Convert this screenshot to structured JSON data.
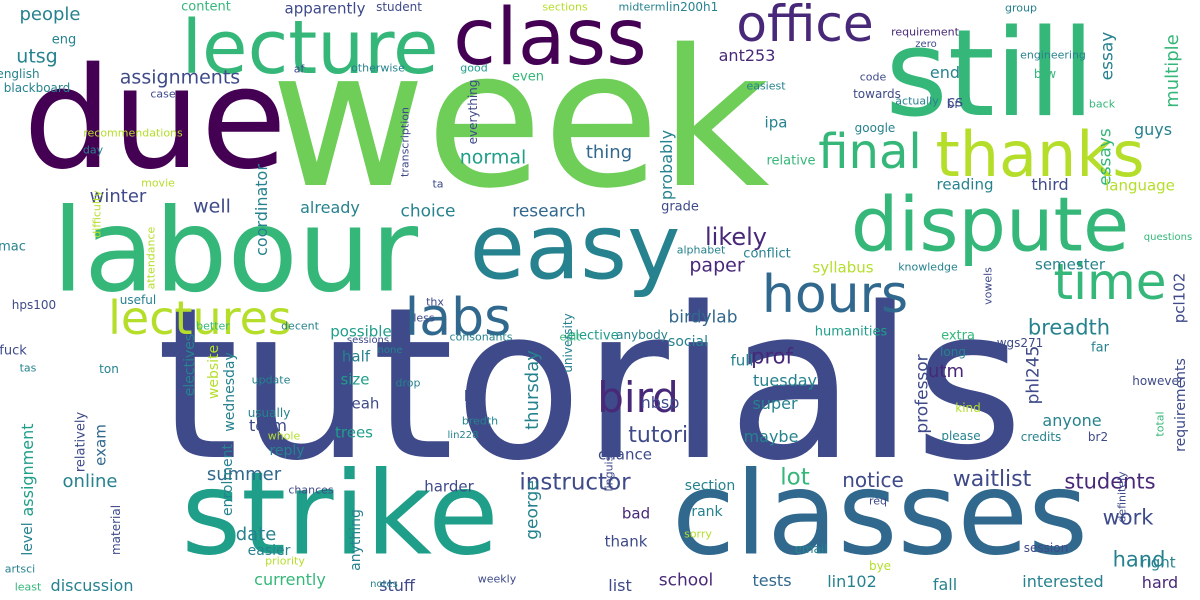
{
  "palette": {
    "dp": "#440154",
    "pu": "#482878",
    "in": "#3e4a89",
    "bl": "#31688e",
    "te": "#26828e",
    "tg": "#1f9e89",
    "gr": "#35b779",
    "lg": "#6ece58",
    "yg": "#b5de2b",
    "ye": "#fde725"
  },
  "words": [
    {
      "text": "week",
      "color": "lg",
      "v": false
    },
    {
      "text": "tutorials",
      "color": "in",
      "v": false
    },
    {
      "text": "still",
      "color": "gr",
      "v": false
    },
    {
      "text": "due",
      "color": "dp",
      "v": false
    },
    {
      "text": "labour",
      "color": "gr",
      "v": false
    },
    {
      "text": "strike",
      "color": "tg",
      "v": false
    },
    {
      "text": "classes",
      "color": "bl",
      "v": false
    },
    {
      "text": "class",
      "color": "dp",
      "v": false
    },
    {
      "text": "lecture",
      "color": "gr",
      "v": false
    },
    {
      "text": "easy",
      "color": "te",
      "v": false
    },
    {
      "text": "dispute",
      "color": "gr",
      "v": false
    },
    {
      "text": "thanks",
      "color": "yg",
      "v": false
    },
    {
      "text": "office",
      "color": "pu",
      "v": false
    },
    {
      "text": "hours",
      "color": "bl",
      "v": false
    },
    {
      "text": "final",
      "color": "gr",
      "v": false
    },
    {
      "text": "time",
      "color": "gr",
      "v": false
    },
    {
      "text": "lectures",
      "color": "yg",
      "v": false
    },
    {
      "text": "labs",
      "color": "bl",
      "v": false
    },
    {
      "text": "bird",
      "color": "pu",
      "v": false
    },
    {
      "text": "tutorial",
      "color": "in",
      "v": false
    },
    {
      "text": "instructor",
      "color": "in",
      "v": false
    },
    {
      "text": "waitlist",
      "color": "in",
      "v": false
    },
    {
      "text": "students",
      "color": "pu",
      "v": false
    },
    {
      "text": "notice",
      "color": "in",
      "v": false
    },
    {
      "text": "lot",
      "color": "gr",
      "v": false
    },
    {
      "text": "likely",
      "color": "pu",
      "v": false
    },
    {
      "text": "paper",
      "color": "pu",
      "v": false
    },
    {
      "text": "birdylab",
      "color": "bl",
      "v": false
    },
    {
      "text": "breadth",
      "color": "te",
      "v": false
    },
    {
      "text": "prof",
      "color": "pu",
      "v": false
    },
    {
      "text": "utm",
      "color": "pu",
      "v": false
    },
    {
      "text": "work",
      "color": "in",
      "v": false
    },
    {
      "text": "hand",
      "color": "te",
      "v": false
    },
    {
      "text": "assignments",
      "color": "in",
      "v": false
    },
    {
      "text": "people",
      "color": "te",
      "v": false
    },
    {
      "text": "utsg",
      "color": "te",
      "v": false
    },
    {
      "text": "winter",
      "color": "in",
      "v": false
    },
    {
      "text": "well",
      "color": "in",
      "v": false
    },
    {
      "text": "normal",
      "color": "tg",
      "v": false
    },
    {
      "text": "thing",
      "color": "bl",
      "v": false
    },
    {
      "text": "ant253",
      "color": "pu",
      "v": false
    },
    {
      "text": "end",
      "color": "te",
      "v": false
    },
    {
      "text": "essay",
      "color": "te",
      "v": true
    },
    {
      "text": "essays",
      "color": "gr",
      "v": true
    },
    {
      "text": "multiple",
      "color": "gr",
      "v": true
    },
    {
      "text": "guys",
      "color": "te",
      "v": false
    },
    {
      "text": "cs",
      "color": "in",
      "v": false
    },
    {
      "text": "ipa",
      "color": "te",
      "v": false
    },
    {
      "text": "reading",
      "color": "te",
      "v": false
    },
    {
      "text": "third",
      "color": "in",
      "v": false
    },
    {
      "text": "language",
      "color": "yg",
      "v": false
    },
    {
      "text": "online",
      "color": "te",
      "v": false
    },
    {
      "text": "summer",
      "color": "bl",
      "v": false
    },
    {
      "text": "date",
      "color": "te",
      "v": false
    },
    {
      "text": "discussion",
      "color": "te",
      "v": false
    },
    {
      "text": "stuff",
      "color": "in",
      "v": false
    },
    {
      "text": "school",
      "color": "pu",
      "v": false
    },
    {
      "text": "list",
      "color": "in",
      "v": false
    },
    {
      "text": "tests",
      "color": "bl",
      "v": false
    },
    {
      "text": "lin102",
      "color": "te",
      "v": false
    },
    {
      "text": "fall",
      "color": "te",
      "v": false
    },
    {
      "text": "interested",
      "color": "te",
      "v": false
    },
    {
      "text": "hard",
      "color": "pu",
      "v": false
    },
    {
      "text": "research",
      "color": "bl",
      "v": false
    },
    {
      "text": "choice",
      "color": "te",
      "v": false
    },
    {
      "text": "already",
      "color": "te",
      "v": false
    },
    {
      "text": "syllabus",
      "color": "yg",
      "v": false
    },
    {
      "text": "semester",
      "color": "te",
      "v": false
    },
    {
      "text": "tuesday",
      "color": "te",
      "v": false
    },
    {
      "text": "super",
      "color": "te",
      "v": false
    },
    {
      "text": "anyone",
      "color": "te",
      "v": false
    },
    {
      "text": "maybe",
      "color": "te",
      "v": false
    },
    {
      "text": "thursday",
      "color": "te",
      "v": true
    },
    {
      "text": "george",
      "color": "te",
      "v": true
    },
    {
      "text": "probably",
      "color": "te",
      "v": true
    },
    {
      "text": "coordinator",
      "color": "te",
      "v": true
    },
    {
      "text": "assignment",
      "color": "tg",
      "v": true
    },
    {
      "text": "exam",
      "color": "bl",
      "v": true
    },
    {
      "text": "professor",
      "color": "in",
      "v": true
    },
    {
      "text": "phl245",
      "color": "in",
      "v": true
    },
    {
      "text": "pcl102",
      "color": "in",
      "v": true
    },
    {
      "text": "requirements",
      "color": "in",
      "v": true
    },
    {
      "text": "term",
      "color": "in",
      "v": false
    },
    {
      "text": "size",
      "color": "tg",
      "v": false
    },
    {
      "text": "yeah",
      "color": "in",
      "v": false
    },
    {
      "text": "trees",
      "color": "tg",
      "v": false
    },
    {
      "text": "possible",
      "color": "tg",
      "v": false
    },
    {
      "text": "half",
      "color": "te",
      "v": false
    },
    {
      "text": "full",
      "color": "te",
      "v": false
    },
    {
      "text": "social",
      "color": "te",
      "v": false
    },
    {
      "text": "humanities",
      "color": "tg",
      "v": false
    },
    {
      "text": "elective",
      "color": "tg",
      "v": false
    },
    {
      "text": "nbsp",
      "color": "in",
      "v": false
    },
    {
      "text": "lol",
      "color": "in",
      "v": false
    },
    {
      "text": "chance",
      "color": "in",
      "v": false
    },
    {
      "text": "harder",
      "color": "in",
      "v": false
    },
    {
      "text": "thank",
      "color": "in",
      "v": false
    },
    {
      "text": "bad",
      "color": "pu",
      "v": false
    },
    {
      "text": "section",
      "color": "te",
      "v": false
    },
    {
      "text": "rank",
      "color": "te",
      "v": false
    },
    {
      "text": "reply",
      "color": "te",
      "v": false
    },
    {
      "text": "easier",
      "color": "te",
      "v": false
    },
    {
      "text": "currently",
      "color": "gr",
      "v": false
    },
    {
      "text": "wednesday",
      "color": "te",
      "v": true
    },
    {
      "text": "electives",
      "color": "te",
      "v": true
    },
    {
      "text": "website",
      "color": "yg",
      "v": true
    },
    {
      "text": "enrolment",
      "color": "te",
      "v": true
    },
    {
      "text": "level",
      "color": "te",
      "v": true
    },
    {
      "text": "anything",
      "color": "te",
      "v": true
    },
    {
      "text": "far",
      "color": "te",
      "v": false
    },
    {
      "text": "right",
      "color": "te",
      "v": false
    },
    {
      "text": "extra",
      "color": "gr",
      "v": false
    },
    {
      "text": "long",
      "color": "te",
      "v": false
    },
    {
      "text": "wgs271",
      "color": "in",
      "v": false
    },
    {
      "text": "however",
      "color": "in",
      "v": false
    },
    {
      "text": "kind",
      "color": "yg",
      "v": false
    },
    {
      "text": "please",
      "color": "te",
      "v": false
    },
    {
      "text": "credits",
      "color": "te",
      "v": false
    },
    {
      "text": "br2",
      "color": "in",
      "v": false
    },
    {
      "text": "total",
      "color": "gr",
      "v": true
    },
    {
      "text": "session",
      "color": "in",
      "v": false
    },
    {
      "text": "definitely",
      "color": "in",
      "v": true
    },
    {
      "text": "bye",
      "color": "yg",
      "v": false
    },
    {
      "text": "req",
      "color": "in",
      "v": false
    },
    {
      "text": "sorry",
      "color": "yg",
      "v": false
    },
    {
      "text": "email",
      "color": "te",
      "v": false
    },
    {
      "text": "weekly",
      "color": "in",
      "v": false
    },
    {
      "text": "notes",
      "color": "te",
      "v": false
    },
    {
      "text": "priority",
      "color": "yg",
      "v": false
    },
    {
      "text": "material",
      "color": "in",
      "v": true
    },
    {
      "text": "artsci",
      "color": "te",
      "v": false
    },
    {
      "text": "least",
      "color": "gr",
      "v": false
    },
    {
      "text": "chances",
      "color": "in",
      "v": false
    },
    {
      "text": "usually",
      "color": "te",
      "v": false
    },
    {
      "text": "update",
      "color": "te",
      "v": false
    },
    {
      "text": "whole",
      "color": "yg",
      "v": false
    },
    {
      "text": "ton",
      "color": "te",
      "v": false
    },
    {
      "text": "relatively",
      "color": "in",
      "v": true
    },
    {
      "text": "fuck",
      "color": "in",
      "v": false
    },
    {
      "text": "tas",
      "color": "te",
      "v": false
    },
    {
      "text": "hps100",
      "color": "in",
      "v": false
    },
    {
      "text": "useful",
      "color": "te",
      "v": false
    },
    {
      "text": "better",
      "color": "gr",
      "v": false
    },
    {
      "text": "decent",
      "color": "te",
      "v": false
    },
    {
      "text": "sessions",
      "color": "in",
      "v": false
    },
    {
      "text": "thx",
      "color": "in",
      "v": false
    },
    {
      "text": "none",
      "color": "te",
      "v": false
    },
    {
      "text": "consonants",
      "color": "te",
      "v": false
    },
    {
      "text": "edit",
      "color": "gr",
      "v": false
    },
    {
      "text": "anybody",
      "color": "te",
      "v": false
    },
    {
      "text": "university",
      "color": "te",
      "v": true
    },
    {
      "text": "drop",
      "color": "te",
      "v": false
    },
    {
      "text": "bredth",
      "color": "te",
      "v": false
    },
    {
      "text": "lin228",
      "color": "te",
      "v": false
    },
    {
      "text": "linguistics",
      "color": "in",
      "v": true
    },
    {
      "text": "less",
      "color": "in",
      "v": false
    },
    {
      "text": "conflict",
      "color": "te",
      "v": false
    },
    {
      "text": "alphabet",
      "color": "te",
      "v": false
    },
    {
      "text": "knowledge",
      "color": "te",
      "v": false
    },
    {
      "text": "vowels",
      "color": "in",
      "v": true
    },
    {
      "text": "questions",
      "color": "gr",
      "v": false
    },
    {
      "text": "grade",
      "color": "in",
      "v": false
    },
    {
      "text": "google",
      "color": "te",
      "v": false
    },
    {
      "text": "code",
      "color": "in",
      "v": false
    },
    {
      "text": "towards",
      "color": "in",
      "v": false
    },
    {
      "text": "br",
      "color": "in",
      "v": false
    },
    {
      "text": "actually",
      "color": "te",
      "v": false
    },
    {
      "text": "back",
      "color": "gr",
      "v": false
    },
    {
      "text": "btw",
      "color": "gr",
      "v": false
    },
    {
      "text": "engineering",
      "color": "te",
      "v": false
    },
    {
      "text": "zero",
      "color": "in",
      "v": false
    },
    {
      "text": "requirement",
      "color": "pu",
      "v": false
    },
    {
      "text": "group",
      "color": "te",
      "v": false
    },
    {
      "text": "lin200h1",
      "color": "te",
      "v": false
    },
    {
      "text": "easiest",
      "color": "te",
      "v": false
    },
    {
      "text": "midterm",
      "color": "te",
      "v": false
    },
    {
      "text": "sections",
      "color": "yg",
      "v": false
    },
    {
      "text": "student",
      "color": "in",
      "v": false
    },
    {
      "text": "apparently",
      "color": "in",
      "v": false
    },
    {
      "text": "content",
      "color": "gr",
      "v": false
    },
    {
      "text": "eng",
      "color": "te",
      "v": false
    },
    {
      "text": "english",
      "color": "te",
      "v": false
    },
    {
      "text": "blackboard",
      "color": "te",
      "v": false
    },
    {
      "text": "af",
      "color": "in",
      "v": false
    },
    {
      "text": "otherwise",
      "color": "te",
      "v": false
    },
    {
      "text": "good",
      "color": "tg",
      "v": false
    },
    {
      "text": "even",
      "color": "gr",
      "v": false
    },
    {
      "text": "case",
      "color": "in",
      "v": false
    },
    {
      "text": "everything",
      "color": "in",
      "v": true
    },
    {
      "text": "transcription",
      "color": "in",
      "v": true
    },
    {
      "text": "day",
      "color": "te",
      "v": false
    },
    {
      "text": "recommendations",
      "color": "yg",
      "v": false
    },
    {
      "text": "movie",
      "color": "yg",
      "v": false
    },
    {
      "text": "ta",
      "color": "in",
      "v": false
    },
    {
      "text": "relative",
      "color": "gr",
      "v": false
    },
    {
      "text": "difficulty",
      "color": "yg",
      "v": true
    },
    {
      "text": "attendance",
      "color": "yg",
      "v": true
    },
    {
      "text": "mac",
      "color": "te",
      "v": false
    }
  ]
}
